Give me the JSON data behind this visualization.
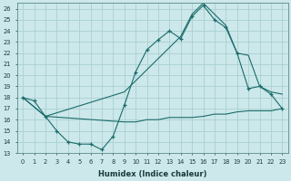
{
  "xlabel": "Humidex (Indice chaleur)",
  "ylabel": "",
  "bg_color": "#cce8ea",
  "grid_color": "#aacfd2",
  "line_color": "#1a6b6b",
  "xlim": [
    -0.5,
    23.5
  ],
  "ylim": [
    13,
    26.5
  ],
  "xticks": [
    0,
    1,
    2,
    3,
    4,
    5,
    6,
    7,
    8,
    9,
    10,
    11,
    12,
    13,
    14,
    15,
    16,
    17,
    18,
    19,
    20,
    21,
    22,
    23
  ],
  "yticks": [
    13,
    14,
    15,
    16,
    17,
    18,
    19,
    20,
    21,
    22,
    23,
    24,
    25,
    26
  ],
  "line1_x": [
    0,
    1,
    2,
    3,
    4,
    5,
    6,
    7,
    8,
    9,
    10,
    11,
    12,
    13,
    14,
    15,
    16,
    17,
    18,
    19,
    20,
    21,
    22,
    23
  ],
  "line1_y": [
    18.0,
    17.7,
    16.3,
    15.0,
    14.0,
    13.8,
    13.8,
    13.3,
    14.5,
    17.3,
    20.3,
    22.3,
    23.2,
    24.0,
    23.3,
    25.3,
    26.3,
    25.0,
    24.3,
    22.0,
    18.8,
    19.0,
    18.3,
    17.0
  ],
  "line2_x": [
    0,
    2,
    9,
    11,
    13,
    14,
    15,
    16,
    17,
    18,
    19,
    20,
    21,
    22,
    23
  ],
  "line2_y": [
    18.0,
    16.3,
    18.5,
    20.5,
    22.5,
    23.5,
    25.5,
    26.5,
    25.5,
    24.5,
    22.0,
    21.8,
    19.0,
    18.5,
    18.3
  ],
  "line3_x": [
    0,
    2,
    9,
    10,
    11,
    12,
    13,
    14,
    15,
    16,
    17,
    18,
    19,
    20,
    21,
    22,
    23
  ],
  "line3_y": [
    18.0,
    16.3,
    15.8,
    15.8,
    16.0,
    16.0,
    16.2,
    16.2,
    16.2,
    16.3,
    16.5,
    16.5,
    16.7,
    16.8,
    16.8,
    16.8,
    17.0
  ]
}
